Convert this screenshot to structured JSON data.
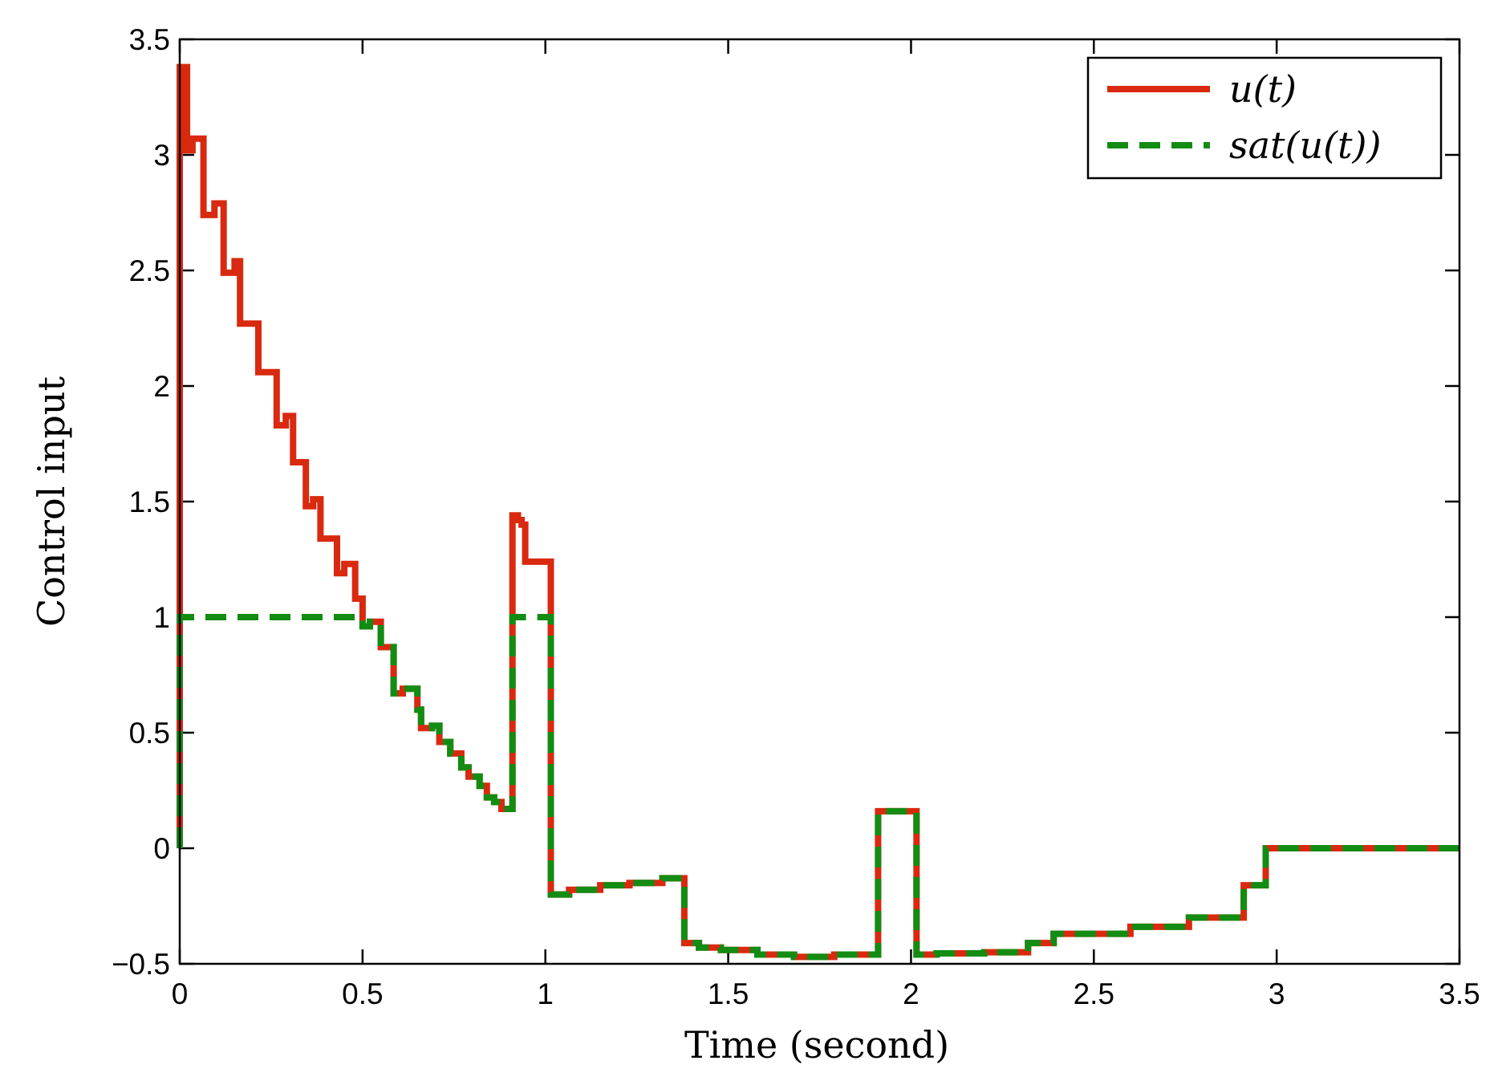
{
  "chart_data": {
    "type": "line",
    "title": "",
    "xlabel": "Time (second)",
    "ylabel": "Control input",
    "xlim": [
      0,
      3.5
    ],
    "ylim": [
      -0.5,
      3.5
    ],
    "xticks": [
      0,
      0.5,
      1,
      1.5,
      2,
      2.5,
      3,
      3.5
    ],
    "xtick_labels": [
      "0",
      "0.5",
      "1",
      "1.5",
      "2",
      "2.5",
      "3",
      "3.5"
    ],
    "yticks": [
      -0.5,
      0,
      0.5,
      1,
      1.5,
      2,
      2.5,
      3,
      3.5
    ],
    "ytick_labels": [
      "−0.5",
      "0",
      "0.5",
      "1",
      "1.5",
      "2",
      "2.5",
      "3",
      "3.5"
    ],
    "grid": false,
    "legend_position": "top-right",
    "series": [
      {
        "name": "u(t)",
        "color": "#d9290f",
        "style": "solid",
        "step": true,
        "points": [
          [
            0,
            0
          ],
          [
            0,
            3.38
          ],
          [
            0.01,
            3.38
          ],
          [
            0.01,
            3.02
          ],
          [
            0.015,
            3.02
          ],
          [
            0.015,
            3.38
          ],
          [
            0.02,
            3.38
          ],
          [
            0.02,
            3.02
          ],
          [
            0.035,
            3.02
          ],
          [
            0.035,
            3.07
          ],
          [
            0.065,
            3.07
          ],
          [
            0.065,
            2.74
          ],
          [
            0.095,
            2.74
          ],
          [
            0.095,
            2.79
          ],
          [
            0.12,
            2.79
          ],
          [
            0.12,
            2.49
          ],
          [
            0.15,
            2.49
          ],
          [
            0.15,
            2.54
          ],
          [
            0.165,
            2.54
          ],
          [
            0.165,
            2.27
          ],
          [
            0.215,
            2.27
          ],
          [
            0.215,
            2.06
          ],
          [
            0.265,
            2.06
          ],
          [
            0.265,
            1.83
          ],
          [
            0.29,
            1.83
          ],
          [
            0.29,
            1.87
          ],
          [
            0.31,
            1.87
          ],
          [
            0.31,
            1.67
          ],
          [
            0.345,
            1.67
          ],
          [
            0.345,
            1.48
          ],
          [
            0.365,
            1.48
          ],
          [
            0.365,
            1.51
          ],
          [
            0.385,
            1.51
          ],
          [
            0.385,
            1.34
          ],
          [
            0.43,
            1.34
          ],
          [
            0.43,
            1.19
          ],
          [
            0.45,
            1.19
          ],
          [
            0.45,
            1.23
          ],
          [
            0.48,
            1.23
          ],
          [
            0.48,
            1.08
          ],
          [
            0.5,
            1.08
          ],
          [
            0.5,
            0.96
          ],
          [
            0.52,
            0.96
          ],
          [
            0.52,
            0.98
          ],
          [
            0.55,
            0.98
          ],
          [
            0.55,
            0.87
          ],
          [
            0.585,
            0.87
          ],
          [
            0.585,
            0.67
          ],
          [
            0.61,
            0.67
          ],
          [
            0.61,
            0.69
          ],
          [
            0.65,
            0.69
          ],
          [
            0.65,
            0.6
          ],
          [
            0.66,
            0.6
          ],
          [
            0.66,
            0.52
          ],
          [
            0.69,
            0.52
          ],
          [
            0.69,
            0.53
          ],
          [
            0.71,
            0.53
          ],
          [
            0.71,
            0.46
          ],
          [
            0.74,
            0.46
          ],
          [
            0.74,
            0.41
          ],
          [
            0.77,
            0.41
          ],
          [
            0.77,
            0.35
          ],
          [
            0.79,
            0.35
          ],
          [
            0.79,
            0.31
          ],
          [
            0.82,
            0.31
          ],
          [
            0.82,
            0.27
          ],
          [
            0.84,
            0.27
          ],
          [
            0.84,
            0.22
          ],
          [
            0.86,
            0.22
          ],
          [
            0.86,
            0.2
          ],
          [
            0.88,
            0.2
          ],
          [
            0.88,
            0.17
          ],
          [
            0.91,
            0.17
          ],
          [
            0.91,
            1.44
          ],
          [
            0.925,
            1.44
          ],
          [
            0.925,
            1.42
          ],
          [
            0.935,
            1.42
          ],
          [
            0.935,
            1.4
          ],
          [
            0.945,
            1.4
          ],
          [
            0.945,
            1.24
          ],
          [
            1.015,
            1.24
          ],
          [
            1.015,
            -0.2
          ],
          [
            1.065,
            -0.2
          ],
          [
            1.065,
            -0.18
          ],
          [
            1.15,
            -0.18
          ],
          [
            1.15,
            -0.16
          ],
          [
            1.23,
            -0.16
          ],
          [
            1.23,
            -0.15
          ],
          [
            1.32,
            -0.15
          ],
          [
            1.32,
            -0.13
          ],
          [
            1.38,
            -0.13
          ],
          [
            1.38,
            -0.41
          ],
          [
            1.42,
            -0.41
          ],
          [
            1.42,
            -0.43
          ],
          [
            1.48,
            -0.43
          ],
          [
            1.48,
            -0.44
          ],
          [
            1.58,
            -0.44
          ],
          [
            1.58,
            -0.46
          ],
          [
            1.68,
            -0.46
          ],
          [
            1.68,
            -0.47
          ],
          [
            1.79,
            -0.47
          ],
          [
            1.79,
            -0.46
          ],
          [
            1.91,
            -0.46
          ],
          [
            1.91,
            0.16
          ],
          [
            2.015,
            0.16
          ],
          [
            2.015,
            -0.46
          ],
          [
            2.07,
            -0.46
          ],
          [
            2.07,
            -0.455
          ],
          [
            2.2,
            -0.455
          ],
          [
            2.2,
            -0.45
          ],
          [
            2.32,
            -0.45
          ],
          [
            2.32,
            -0.41
          ],
          [
            2.39,
            -0.41
          ],
          [
            2.39,
            -0.37
          ],
          [
            2.6,
            -0.37
          ],
          [
            2.6,
            -0.34
          ],
          [
            2.76,
            -0.34
          ],
          [
            2.76,
            -0.3
          ],
          [
            2.91,
            -0.3
          ],
          [
            2.91,
            -0.16
          ],
          [
            2.97,
            -0.16
          ],
          [
            2.97,
            0
          ],
          [
            3.5,
            0
          ]
        ]
      },
      {
        "name": "sat(u(t))",
        "color": "#138c13",
        "style": "dashed",
        "step": true,
        "points": [
          [
            0,
            0
          ],
          [
            0,
            1
          ],
          [
            0.5,
            1
          ],
          [
            0.5,
            0.96
          ],
          [
            0.52,
            0.96
          ],
          [
            0.52,
            0.98
          ],
          [
            0.55,
            0.98
          ],
          [
            0.55,
            0.87
          ],
          [
            0.585,
            0.87
          ],
          [
            0.585,
            0.67
          ],
          [
            0.61,
            0.67
          ],
          [
            0.61,
            0.69
          ],
          [
            0.65,
            0.69
          ],
          [
            0.65,
            0.6
          ],
          [
            0.66,
            0.6
          ],
          [
            0.66,
            0.52
          ],
          [
            0.69,
            0.52
          ],
          [
            0.69,
            0.53
          ],
          [
            0.71,
            0.53
          ],
          [
            0.71,
            0.46
          ],
          [
            0.74,
            0.46
          ],
          [
            0.74,
            0.41
          ],
          [
            0.77,
            0.41
          ],
          [
            0.77,
            0.35
          ],
          [
            0.79,
            0.35
          ],
          [
            0.79,
            0.31
          ],
          [
            0.82,
            0.31
          ],
          [
            0.82,
            0.27
          ],
          [
            0.84,
            0.27
          ],
          [
            0.84,
            0.22
          ],
          [
            0.86,
            0.22
          ],
          [
            0.86,
            0.2
          ],
          [
            0.88,
            0.2
          ],
          [
            0.88,
            0.17
          ],
          [
            0.91,
            0.17
          ],
          [
            0.91,
            1
          ],
          [
            1.015,
            1
          ],
          [
            1.015,
            -0.2
          ],
          [
            1.065,
            -0.2
          ],
          [
            1.065,
            -0.18
          ],
          [
            1.15,
            -0.18
          ],
          [
            1.15,
            -0.16
          ],
          [
            1.23,
            -0.16
          ],
          [
            1.23,
            -0.15
          ],
          [
            1.32,
            -0.15
          ],
          [
            1.32,
            -0.13
          ],
          [
            1.38,
            -0.13
          ],
          [
            1.38,
            -0.41
          ],
          [
            1.42,
            -0.41
          ],
          [
            1.42,
            -0.43
          ],
          [
            1.48,
            -0.43
          ],
          [
            1.48,
            -0.44
          ],
          [
            1.58,
            -0.44
          ],
          [
            1.58,
            -0.46
          ],
          [
            1.68,
            -0.46
          ],
          [
            1.68,
            -0.47
          ],
          [
            1.79,
            -0.47
          ],
          [
            1.79,
            -0.46
          ],
          [
            1.91,
            -0.46
          ],
          [
            1.91,
            0.16
          ],
          [
            2.015,
            0.16
          ],
          [
            2.015,
            -0.46
          ],
          [
            2.07,
            -0.46
          ],
          [
            2.07,
            -0.455
          ],
          [
            2.2,
            -0.455
          ],
          [
            2.2,
            -0.45
          ],
          [
            2.32,
            -0.45
          ],
          [
            2.32,
            -0.41
          ],
          [
            2.39,
            -0.41
          ],
          [
            2.39,
            -0.37
          ],
          [
            2.6,
            -0.37
          ],
          [
            2.6,
            -0.34
          ],
          [
            2.76,
            -0.34
          ],
          [
            2.76,
            -0.3
          ],
          [
            2.91,
            -0.3
          ],
          [
            2.91,
            -0.16
          ],
          [
            2.97,
            -0.16
          ],
          [
            2.97,
            0
          ],
          [
            3.5,
            0
          ]
        ]
      }
    ]
  }
}
